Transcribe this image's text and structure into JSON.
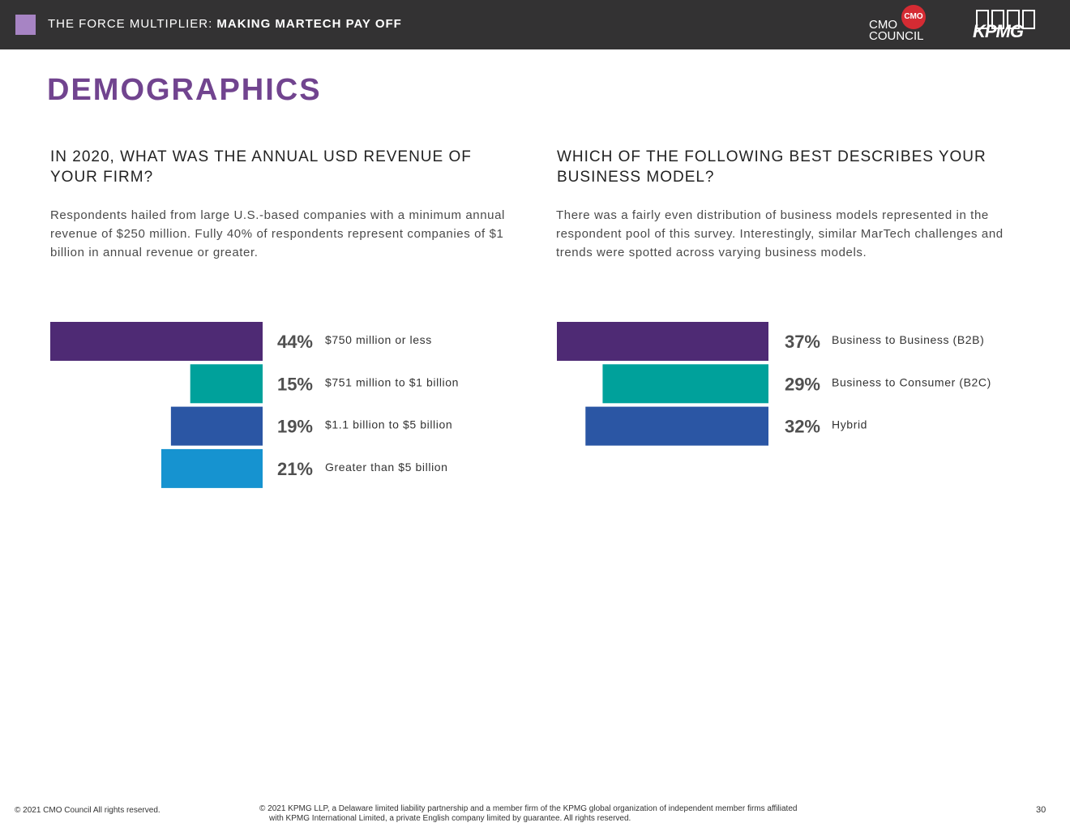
{
  "header": {
    "title_prefix": "THE FORCE MULTIPLIER: ",
    "title_bold": "MAKING MARTECH PAY OFF",
    "cmo_logo_mark": "CMO",
    "cmo_logo_line1": "CMO",
    "cmo_logo_line2": "COUNCIL",
    "kpmg_logo_text": "KPMG"
  },
  "page_title": "DEMOGRAPHICS",
  "left": {
    "question": "IN 2020, WHAT WAS THE ANNUAL USD REVENUE OF YOUR FIRM?",
    "description": "Respondents hailed from large U.S.-based companies with a minimum annual revenue of $250 million. Fully 40% of respondents represent companies of $1 billion in annual revenue or greater."
  },
  "right": {
    "question": "WHICH OF THE FOLLOWING BEST DESCRIBES YOUR BUSINESS MODEL?",
    "description": "There was a fairly even distribution of business models represented in the respondent pool of this survey. Interestingly, similar MarTech challenges and trends were spotted across varying business models."
  },
  "chart_data": [
    {
      "type": "bar",
      "orientation": "horizontal",
      "title": "IN 2020, WHAT WAS THE ANNUAL USD REVENUE OF YOUR FIRM?",
      "unit": "%",
      "categories": [
        "$750 million or less",
        "$751 million to $1 billion",
        "$1.1 billion to $5 billion",
        "Greater than $5 billion"
      ],
      "values": [
        44,
        15,
        19,
        21
      ],
      "labels": [
        "44%",
        "15%",
        "19%",
        "21%"
      ],
      "colors": [
        "#4e2a74",
        "#00a19b",
        "#2b56a4",
        "#1693d0"
      ]
    },
    {
      "type": "bar",
      "orientation": "horizontal",
      "title": "WHICH OF THE FOLLOWING BEST DESCRIBES YOUR BUSINESS MODEL?",
      "unit": "%",
      "categories": [
        "Business to Business (B2B)",
        "Business to Consumer (B2C)",
        "Hybrid"
      ],
      "values": [
        37,
        29,
        32
      ],
      "labels": [
        "37%",
        "29%",
        "32%"
      ],
      "colors": [
        "#4e2a74",
        "#00a19b",
        "#2b56a4"
      ]
    }
  ],
  "footer": {
    "left": "© 2021 CMO Council  All rights reserved.",
    "mid_line1": "© 2021 KPMG LLP, a Delaware limited liability partnership and a member firm of the KPMG global organization of independent member firms affiliated",
    "mid_line2": "with KPMG International Limited, a private English company limited by guarantee. All rights reserved.",
    "page_number": "30"
  }
}
